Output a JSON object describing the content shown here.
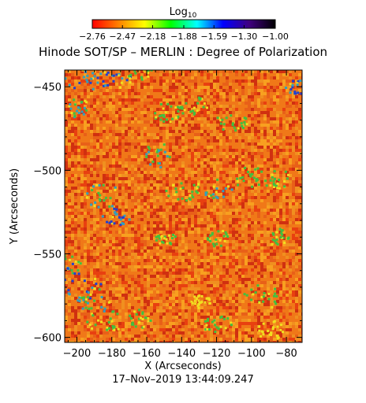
{
  "chart_data": {
    "type": "heatmap",
    "title": "Hinode SOT/SP – MERLIN : Degree of Polarization",
    "xlabel": "X (Arcseconds)",
    "ylabel": "Y (Arcseconds)",
    "xlim": [
      -207,
      -71
    ],
    "ylim": [
      -603,
      -440
    ],
    "xticks": [
      -200,
      -180,
      -160,
      -140,
      -120,
      -100,
      -80
    ],
    "yticks": [
      -450,
      -500,
      -550,
      -600
    ],
    "xtick_labels": [
      "−200",
      "−180",
      "−160",
      "−140",
      "−120",
      "−100",
      "−80"
    ],
    "ytick_labels": [
      "−450",
      "−500",
      "−550",
      "−600"
    ],
    "colorbar": {
      "title": "Log",
      "title_subscript": "10",
      "ticks": [
        -2.76,
        -2.47,
        -2.18,
        -1.88,
        -1.59,
        -1.3,
        -1.0
      ],
      "tick_labels": [
        "−2.76",
        "−2.47",
        "−2.18",
        "−1.88",
        "−1.59",
        "−1.30",
        "−1.00"
      ],
      "colors": [
        "#ff0000",
        "#ff8000",
        "#ffff00",
        "#00ff00",
        "#00ffff",
        "#0000ff",
        "#400080",
        "#000000"
      ]
    },
    "timestamp": "17–Nov–2019 13:44:09.247",
    "grid": false
  },
  "colors": {
    "background_field": "#f07818",
    "field_speckle": [
      "#e84010",
      "#f09020",
      "#e86018",
      "#f8a020",
      "#d03010"
    ],
    "plage": [
      "#40c040",
      "#30a0c0",
      "#2040d0",
      "#f0e020"
    ]
  }
}
